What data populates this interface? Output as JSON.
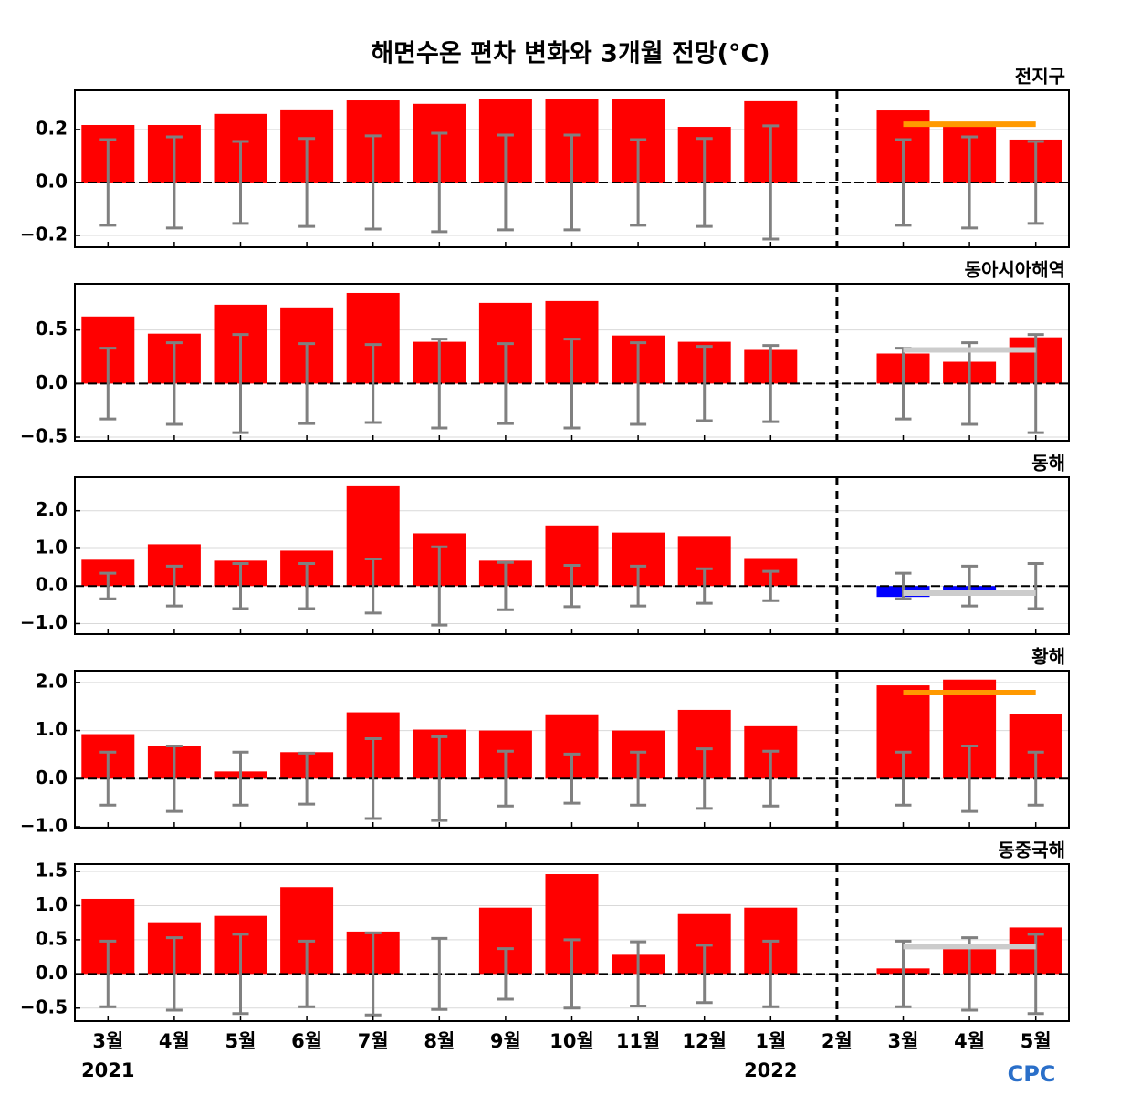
{
  "title": "해면수온 편차 변화와 3개월 전망(°C)",
  "categories": [
    "3월",
    "4월",
    "5월",
    "6월",
    "7월",
    "8월",
    "9월",
    "10월",
    "11월",
    "12월",
    "1월",
    "2월",
    "3월",
    "4월",
    "5월"
  ],
  "year_labels": [
    "2021",
    null,
    null,
    null,
    null,
    null,
    null,
    null,
    null,
    null,
    "2022",
    null,
    null,
    null,
    null
  ],
  "logo": "CPC",
  "positive_color": "#ff0000",
  "negative_color": "#0000ff",
  "error_color": "#808080",
  "chart_data": [
    {
      "type": "bar",
      "title": "전지구",
      "values": [
        0.217,
        0.217,
        0.259,
        0.276,
        0.31,
        0.297,
        0.314,
        0.314,
        0.314,
        0.21,
        0.307,
        null,
        0.272,
        0.21,
        0.162
      ],
      "errors": [
        0.162,
        0.172,
        0.155,
        0.166,
        0.176,
        0.186,
        0.179,
        0.179,
        0.162,
        0.166,
        0.214,
        null,
        0.162,
        0.172,
        0.155
      ],
      "forecast": {
        "value": 0.22,
        "color": "#ff9900"
      },
      "ylim": [
        -0.245,
        0.348
      ],
      "yticks": [
        {
          "value": -0.2,
          "label": "−0.2"
        },
        {
          "value": 0,
          "label": "0.0"
        },
        {
          "value": 0.2,
          "label": "0.2"
        }
      ],
      "grid": true
    },
    {
      "type": "bar",
      "title": "동아시아해역",
      "values": [
        0.627,
        0.466,
        0.737,
        0.712,
        0.847,
        0.39,
        0.754,
        0.771,
        0.449,
        0.39,
        0.314,
        null,
        0.28,
        0.203,
        0.432
      ],
      "errors": [
        0.33,
        0.381,
        0.458,
        0.373,
        0.364,
        0.415,
        0.373,
        0.415,
        0.381,
        0.347,
        0.356,
        null,
        0.33,
        0.381,
        0.458
      ],
      "forecast": {
        "value": 0.314,
        "color": "#cccccc"
      },
      "ylim": [
        -0.534,
        0.932
      ],
      "yticks": [
        {
          "value": -0.5,
          "label": "−0.5"
        },
        {
          "value": 0,
          "label": "0.0"
        },
        {
          "value": 0.5,
          "label": "0.5"
        }
      ],
      "grid": true
    },
    {
      "type": "bar",
      "title": "동해",
      "values": [
        0.7,
        1.11,
        0.675,
        0.94,
        2.65,
        1.4,
        0.675,
        1.61,
        1.42,
        1.33,
        0.72,
        null,
        -0.29,
        -0.24,
        null
      ],
      "errors": [
        0.34,
        0.53,
        0.6,
        0.6,
        0.72,
        1.04,
        0.63,
        0.55,
        0.53,
        0.46,
        0.39,
        null,
        0.34,
        0.53,
        0.6
      ],
      "forecast": {
        "value": -0.19,
        "color": "#cccccc"
      },
      "ylim": [
        -1.28,
        2.89
      ],
      "yticks": [
        {
          "value": -1,
          "label": "−1.0"
        },
        {
          "value": 0,
          "label": "0.0"
        },
        {
          "value": 1,
          "label": "1.0"
        },
        {
          "value": 2,
          "label": "2.0"
        }
      ],
      "grid": true
    },
    {
      "type": "bar",
      "title": "황해",
      "values": [
        0.925,
        0.68,
        0.15,
        0.55,
        1.38,
        1.02,
        1.0,
        1.32,
        1.0,
        1.43,
        1.09,
        null,
        1.94,
        2.06,
        1.34
      ],
      "errors": [
        0.55,
        0.68,
        0.55,
        0.53,
        0.83,
        0.87,
        0.57,
        0.51,
        0.55,
        0.62,
        0.57,
        null,
        0.55,
        0.68,
        0.55
      ],
      "forecast": {
        "value": 1.79,
        "color": "#ff9900"
      },
      "ylim": [
        -1.02,
        2.245
      ],
      "yticks": [
        {
          "value": -1,
          "label": "−1.0"
        },
        {
          "value": 0,
          "label": "0.0"
        },
        {
          "value": 1,
          "label": "1.0"
        },
        {
          "value": 2,
          "label": "2.0"
        }
      ],
      "grid": true
    },
    {
      "type": "bar",
      "title": "동중국해",
      "values": [
        1.1,
        0.757,
        0.85,
        1.27,
        0.62,
        0,
        0.97,
        1.46,
        0.28,
        0.876,
        0.97,
        null,
        0.08,
        0.37,
        0.68
      ],
      "errors": [
        0.48,
        0.53,
        0.58,
        0.48,
        0.6,
        0.52,
        0.37,
        0.5,
        0.47,
        0.42,
        0.48,
        null,
        0.48,
        0.53,
        0.58
      ],
      "forecast": {
        "value": 0.4,
        "color": "#cccccc"
      },
      "ylim": [
        -0.69,
        1.607
      ],
      "yticks": [
        {
          "value": -0.5,
          "label": "−0.5"
        },
        {
          "value": 0,
          "label": "0.0"
        },
        {
          "value": 0.5,
          "label": "0.5"
        },
        {
          "value": 1,
          "label": "1.0"
        },
        {
          "value": 1.5,
          "label": "1.5"
        }
      ],
      "grid": true
    }
  ]
}
